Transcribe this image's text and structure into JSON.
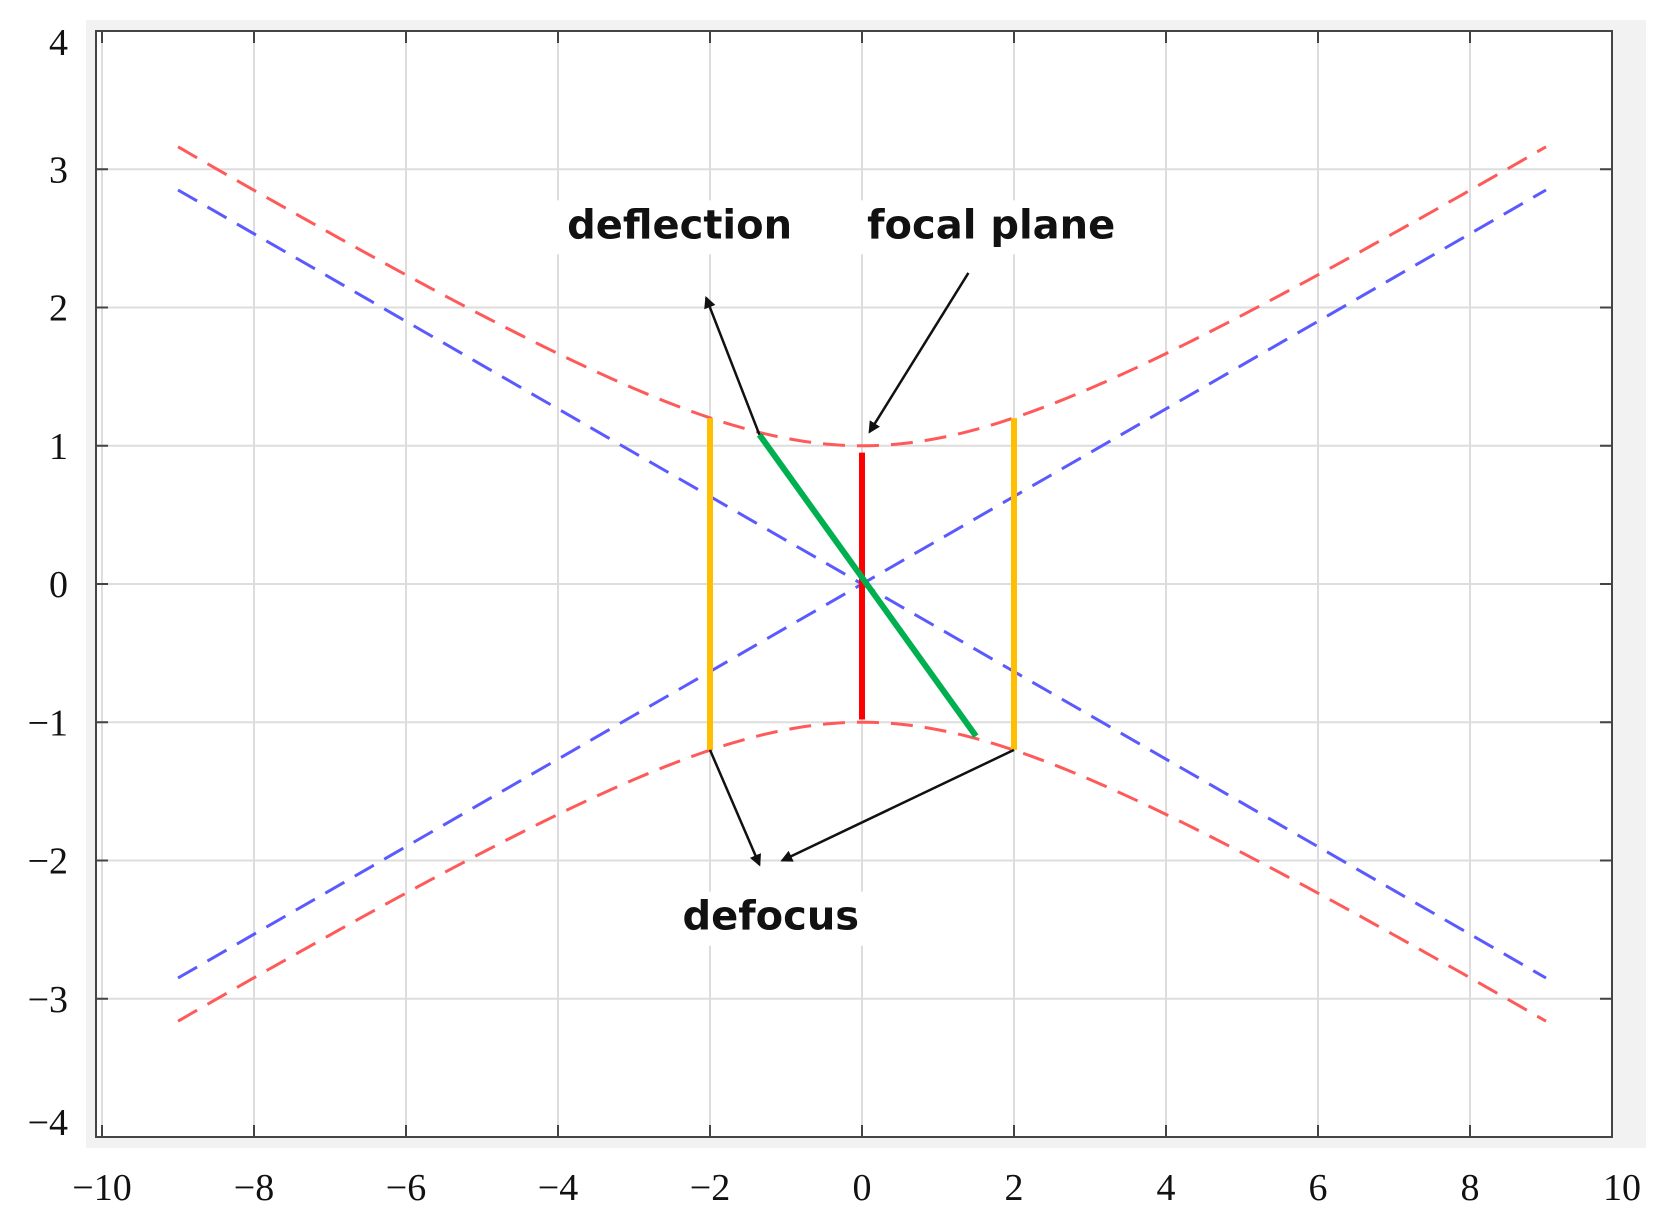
{
  "chart_data": {
    "type": "line",
    "title": "",
    "xlabel": "",
    "ylabel": "",
    "xlim": [
      -10,
      10
    ],
    "ylim": [
      -4,
      4
    ],
    "grid": true,
    "legend": "none",
    "x_ticks": [
      "−10",
      "−8",
      "−6",
      "−4",
      "−2",
      "0",
      "2",
      "4",
      "6",
      "8",
      "10"
    ],
    "x_tick_values": [
      -10,
      -8,
      -6,
      -4,
      -2,
      0,
      2,
      4,
      6,
      8,
      10
    ],
    "y_ticks": [
      "4",
      "3",
      "2",
      "1",
      "0",
      "−1",
      "−2",
      "−3",
      "−4"
    ],
    "y_tick_values": [
      4,
      3,
      2,
      1,
      0,
      -1,
      -2,
      -3,
      -4
    ],
    "series": [
      {
        "kind": "hyperbola",
        "branch": "upper",
        "style": "dashed",
        "color": "#ff5a5a",
        "a": 1,
        "b": 3,
        "x_range": [
          -9,
          9
        ]
      },
      {
        "kind": "hyperbola",
        "branch": "lower",
        "style": "dashed",
        "color": "#ff5a5a",
        "a": 1,
        "b": 3,
        "x_range": [
          -9,
          9
        ]
      },
      {
        "kind": "segment",
        "style": "dashed",
        "color": "#5a5aff",
        "x": [
          -9,
          9
        ],
        "y": [
          2.85,
          -2.85
        ]
      },
      {
        "kind": "segment",
        "style": "dashed",
        "color": "#5a5aff",
        "x": [
          -9,
          9
        ],
        "y": [
          -2.85,
          2.85
        ]
      },
      {
        "kind": "segment",
        "style": "solid",
        "color": "#ff0000",
        "x": [
          0,
          0
        ],
        "y": [
          0.95,
          -0.98
        ]
      },
      {
        "kind": "segment",
        "style": "solid",
        "color": "#ffbf00",
        "x": [
          -2,
          -2
        ],
        "y": [
          1.2,
          -1.2
        ]
      },
      {
        "kind": "segment",
        "style": "solid",
        "color": "#ffbf00",
        "x": [
          2,
          2
        ],
        "y": [
          1.2,
          -1.2
        ]
      },
      {
        "kind": "segment",
        "style": "solid",
        "color": "#00b050",
        "x": [
          -1.35,
          1.5
        ],
        "y": [
          1.08,
          -1.1
        ]
      }
    ],
    "annotations": [
      {
        "text": "deflection",
        "at": [
          -2.4,
          2.5
        ],
        "arrow_from": [
          -1.35,
          1.08
        ],
        "arrow_to": [
          -2.05,
          2.07
        ]
      },
      {
        "text": "focal plane",
        "at": [
          1.7,
          2.5
        ],
        "arrow_from": [
          1.4,
          2.25
        ],
        "arrow_to": [
          0.1,
          1.1
        ]
      },
      {
        "text": "defocus",
        "at": [
          -1.2,
          -2.5
        ],
        "arrows": [
          {
            "from": [
              -2,
              -1.2
            ],
            "to": [
              -1.35,
              -2.03
            ]
          },
          {
            "from": [
              2,
              -1.2
            ],
            "to": [
              -1.05,
              -2.0
            ]
          }
        ]
      }
    ]
  }
}
